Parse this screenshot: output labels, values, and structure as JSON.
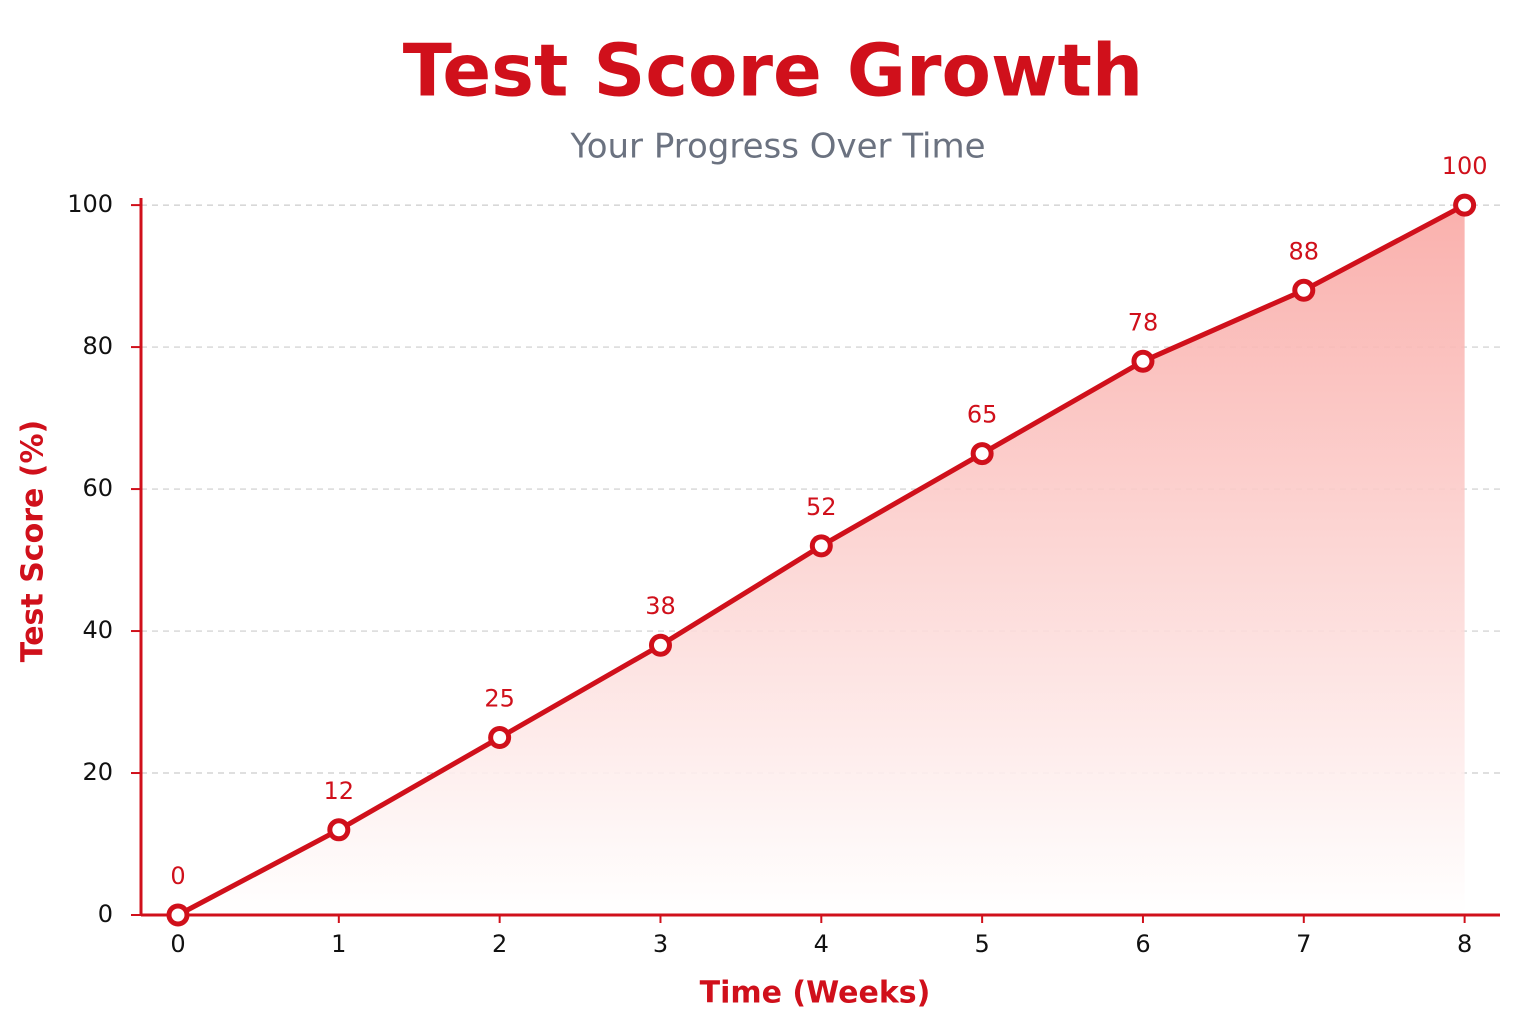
{
  "chart_data": {
    "type": "line",
    "title": "Test Score Growth",
    "subtitle": "Your Progress Over Time",
    "x_label": "Time (Weeks)",
    "y_label": "Test Score (%)",
    "x": [
      0,
      1,
      2,
      3,
      4,
      5,
      6,
      7,
      8
    ],
    "values": [
      0,
      12,
      25,
      38,
      52,
      65,
      78,
      88,
      100
    ],
    "color": "#d0101b",
    "area": true,
    "xlim": [
      -0.23,
      8.22
    ],
    "ylim": [
      0,
      101
    ],
    "xticks": [
      0,
      1,
      2,
      3,
      4,
      5,
      6,
      7,
      8
    ],
    "yticks": [
      0,
      20,
      40,
      60,
      80,
      100
    ],
    "grid": true
  }
}
